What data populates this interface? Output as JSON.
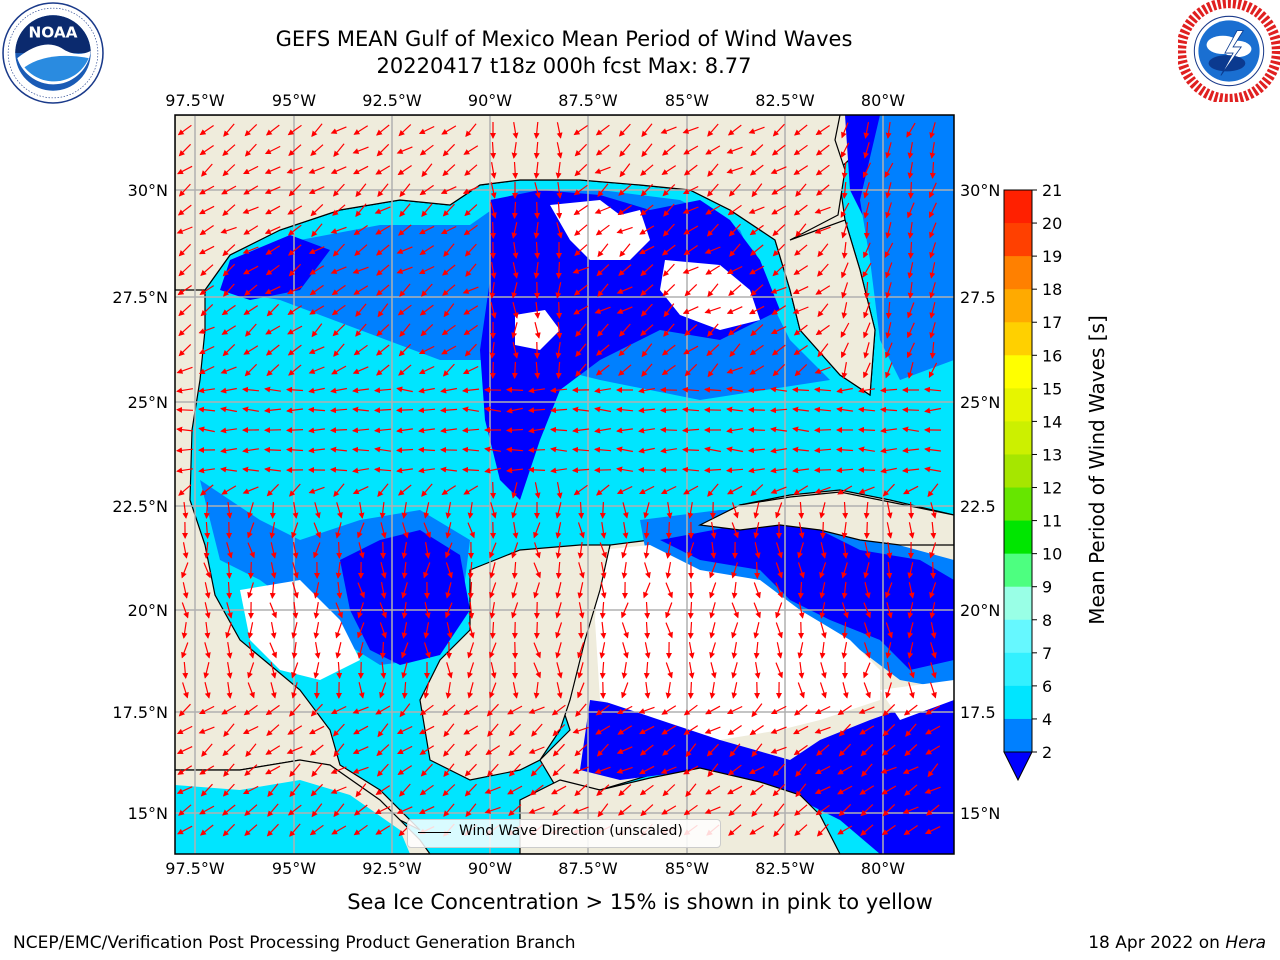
{
  "header": {
    "title_line1": "GEFS MEAN Gulf of Mexico Mean Period of Wind Waves",
    "title_line2": "20220417 t18z 000h fcst   Max: 8.77"
  },
  "logos": {
    "noaa": {
      "text": "NOAA",
      "ring_text": "NATIONAL OCEANIC AND ATMOSPHERIC ADMINISTRATION · U.S. DEPARTMENT OF COMMERCE"
    },
    "nws": {
      "ring_text": "NATIONAL WEATHER SERVICE"
    }
  },
  "map": {
    "lon_labels": [
      "97.5°W",
      "95°W",
      "92.5°W",
      "90°W",
      "87.5°W",
      "85°W",
      "82.5°W",
      "80°W"
    ],
    "lat_labels_left": [
      "30°N",
      "27.5°N",
      "25°N",
      "22.5°N",
      "20°N",
      "17.5°N",
      "15°N"
    ],
    "lat_labels_right": [
      "30°N",
      "27.5",
      "25°N",
      "22.5",
      "20°N",
      "17.5",
      "15°N"
    ],
    "legend_label": "Wind Wave Direction (unscaled)",
    "colors": {
      "land": "#efecdc",
      "grid": "#b0b0b0",
      "coast": "#000000",
      "arrow": "#ff0000"
    }
  },
  "colorbar": {
    "title": "Mean Period of Wind Waves [s]",
    "levels": [
      "2",
      "4",
      "6",
      "7",
      "8",
      "9",
      "10",
      "11",
      "12",
      "13",
      "14",
      "15",
      "16",
      "17",
      "18",
      "19",
      "20",
      "21"
    ],
    "colors": [
      "#0000ff",
      "#0080ff",
      "#00e5ff",
      "#33f0ff",
      "#66f8ff",
      "#99ffe6",
      "#4dff80",
      "#00e600",
      "#66e600",
      "#a6e600",
      "#ccf000",
      "#e6f500",
      "#ffff00",
      "#ffd000",
      "#ffaa00",
      "#ff8000",
      "#ff4000",
      "#ff2000",
      "#ff0000"
    ]
  },
  "footer": {
    "ice_note": "Sea Ice Concentration > 15% is shown in pink to yellow",
    "left": "NCEP/EMC/Verification Post Processing Product Generation Branch",
    "right_prefix": "18 Apr 2022 on ",
    "right_machine": "Hera"
  }
}
